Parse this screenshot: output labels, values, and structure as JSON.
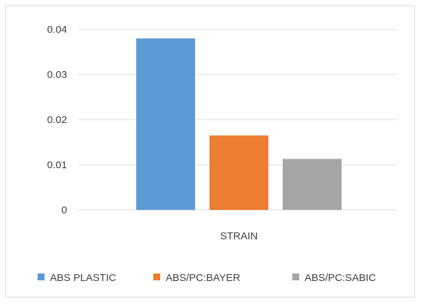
{
  "chart_data": {
    "type": "bar",
    "categories": [
      "STRAIN"
    ],
    "series": [
      {
        "name": "ABS PLASTIC",
        "values": [
          0.038
        ],
        "color": "#5b9bd5"
      },
      {
        "name": "ABS/PC:BAYER",
        "values": [
          0.0165
        ],
        "color": "#ed7d31"
      },
      {
        "name": "ABS/PC:SABIC",
        "values": [
          0.0113
        ],
        "color": "#a5a5a5"
      }
    ],
    "yticks": [
      "0",
      "0.01",
      "0.02",
      "0.03",
      "0.04"
    ],
    "ylim": [
      0,
      0.04
    ],
    "title": "",
    "xlabel": "",
    "ylabel": "",
    "grid": true,
    "legend_position": "bottom"
  }
}
